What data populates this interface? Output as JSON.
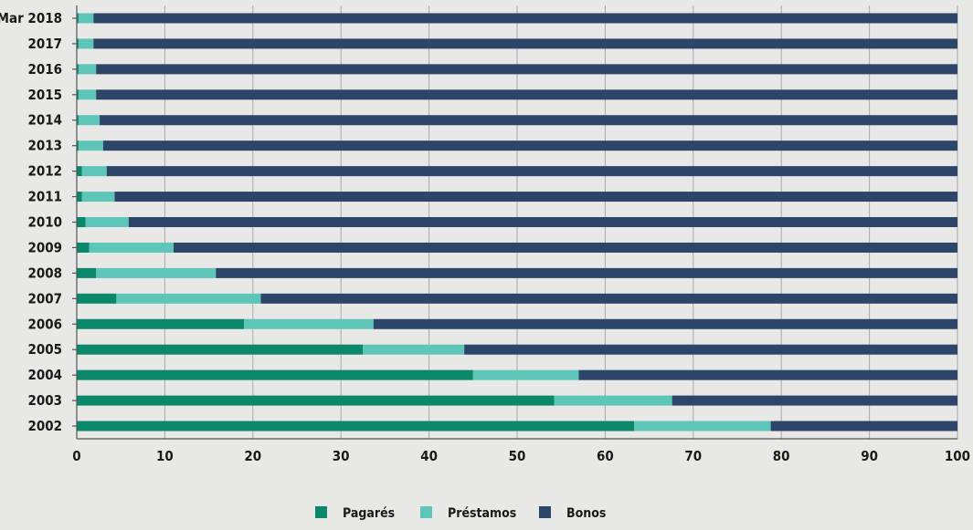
{
  "chart_data": {
    "type": "bar",
    "orientation": "horizontal",
    "stacked": true,
    "categories": [
      "Mar 2018",
      "2017",
      "2016",
      "2015",
      "2014",
      "2013",
      "2012",
      "2011",
      "2010",
      "2009",
      "2008",
      "2007",
      "2006",
      "2005",
      "2004",
      "2003",
      "2002"
    ],
    "series": [
      {
        "name": "Pagarés",
        "color": "#0b8769",
        "values": [
          0.2,
          0.2,
          0.2,
          0.2,
          0.2,
          0.2,
          0.6,
          0.6,
          1.0,
          1.4,
          2.2,
          4.5,
          19.0,
          32.5,
          45.0,
          54.2,
          63.3
        ]
      },
      {
        "name": "Préstamos",
        "color": "#5ec6b8",
        "values": [
          1.7,
          1.7,
          2.0,
          2.0,
          2.4,
          2.8,
          2.8,
          3.7,
          4.9,
          9.6,
          13.6,
          16.4,
          14.7,
          11.5,
          12.0,
          13.4,
          15.5
        ]
      },
      {
        "name": "Bonos",
        "color": "#2d4569",
        "values": [
          98.1,
          98.1,
          97.8,
          97.8,
          97.4,
          97.0,
          96.6,
          95.7,
          94.1,
          89.0,
          84.2,
          79.1,
          66.3,
          56.0,
          43.0,
          32.4,
          21.2
        ]
      }
    ],
    "xlim": [
      0,
      100
    ],
    "xticks": [
      0,
      10,
      20,
      30,
      40,
      50,
      60,
      70,
      80,
      90,
      100
    ],
    "grid": true,
    "legend_position": "bottom"
  }
}
